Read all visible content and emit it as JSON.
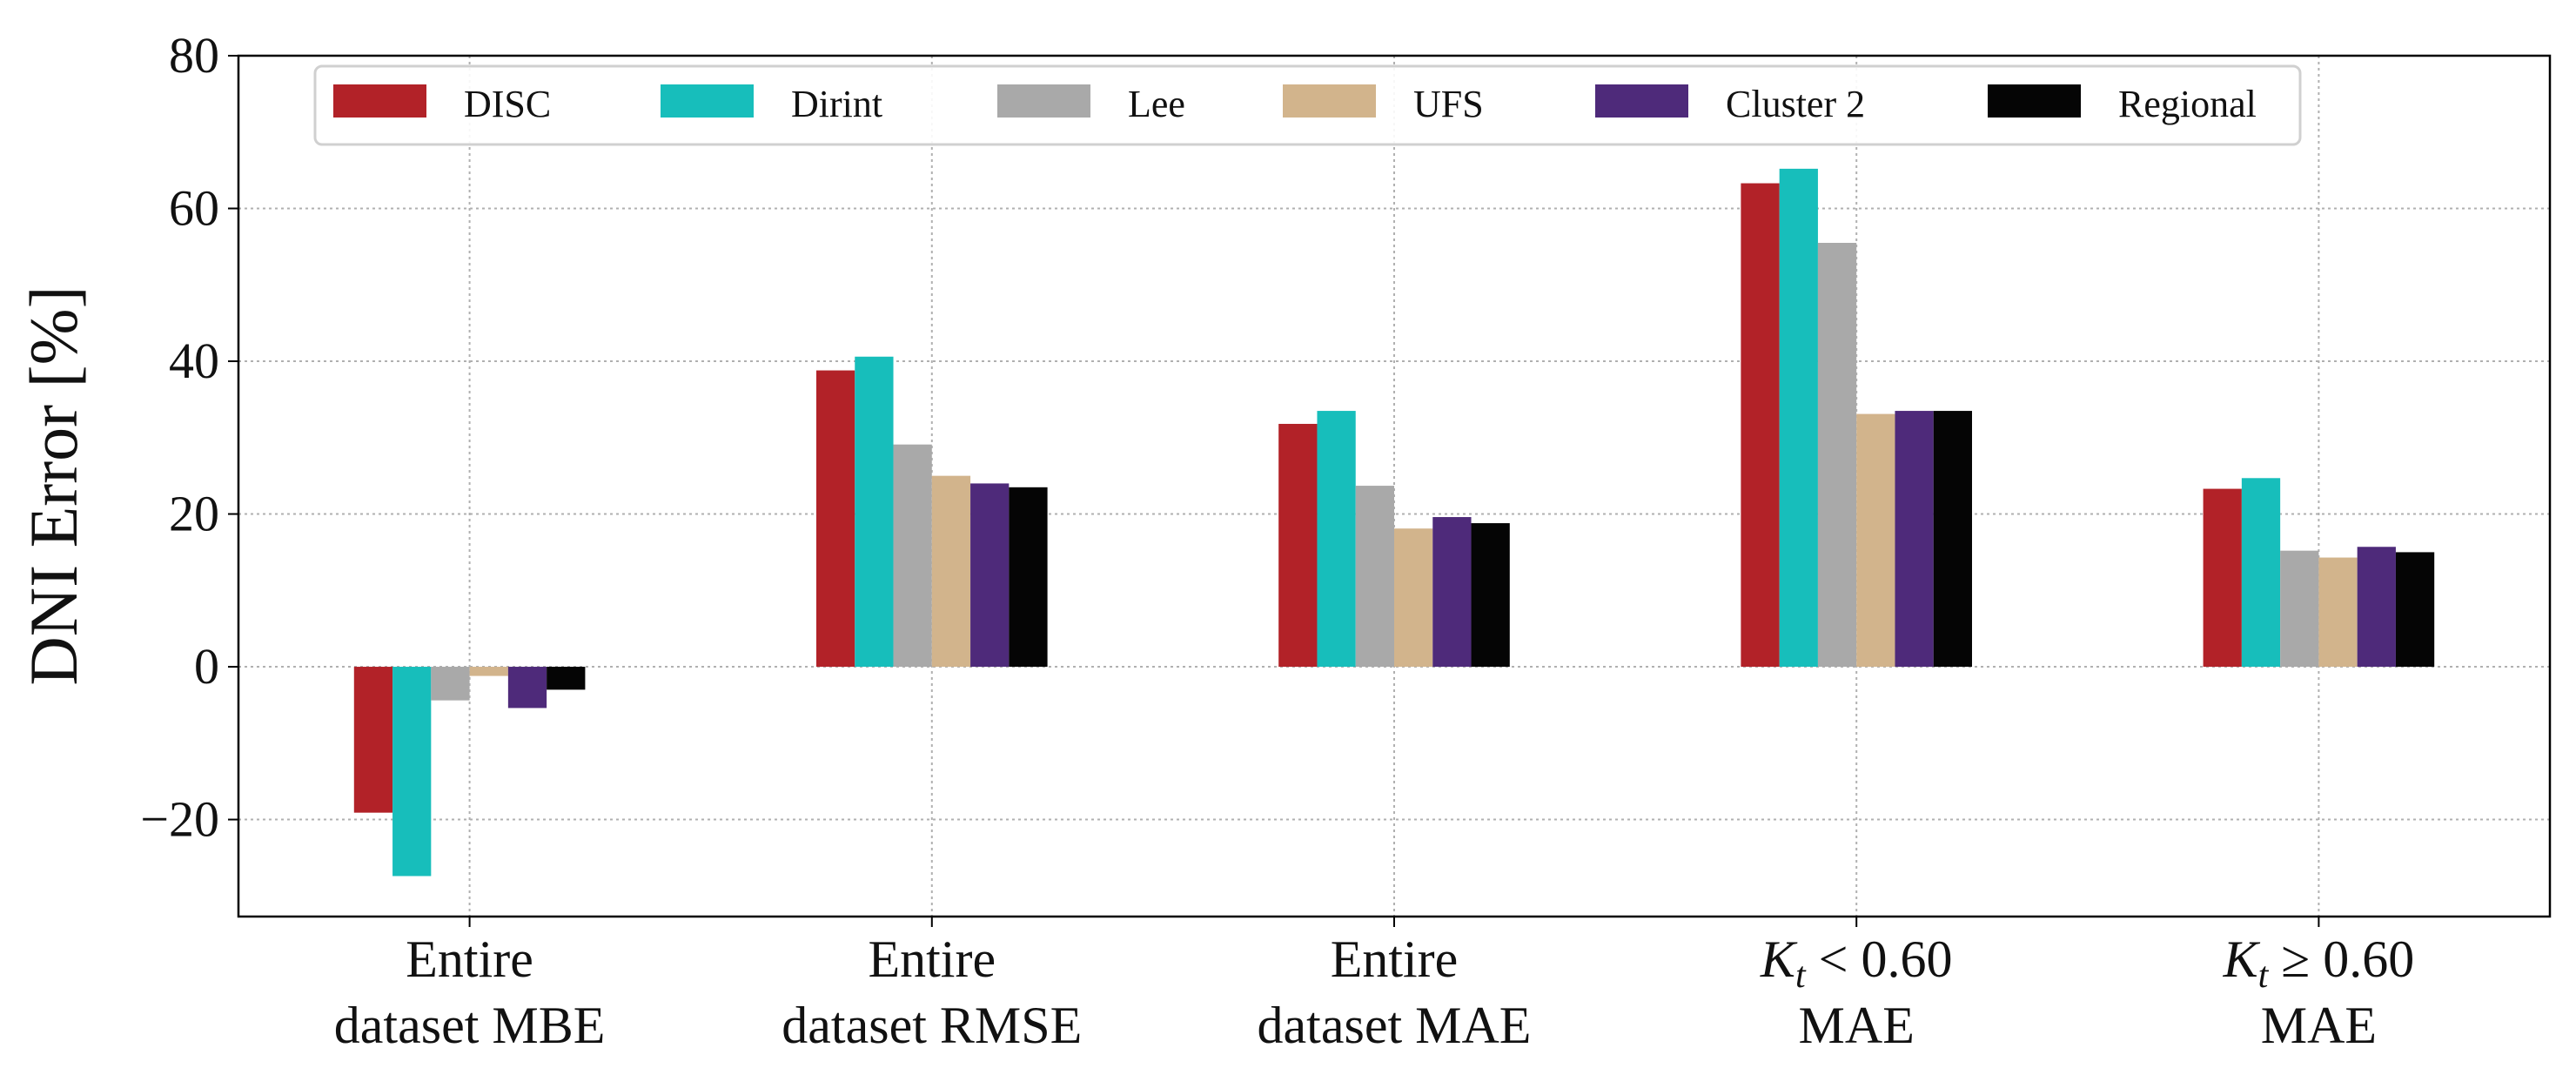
{
  "chart_data": {
    "type": "bar",
    "ylabel": "DNI Error [%]",
    "ylim": [
      -32.7,
      80
    ],
    "yticks": [
      -20,
      0,
      20,
      40,
      60,
      80
    ],
    "grid": true,
    "legend_placement": "top",
    "categories": [
      {
        "line1": "Entire",
        "line2": "dataset MBE"
      },
      {
        "line1": "Entire",
        "line2": "dataset RMSE"
      },
      {
        "line1": "Entire",
        "line2": "dataset MAE"
      },
      {
        "math": {
          "var": "K",
          "sub": "t",
          "rel": "<",
          "val": "0.60"
        },
        "line2": "MAE"
      },
      {
        "math": {
          "var": "K",
          "sub": "t",
          "rel": "≥",
          "val": "0.60"
        },
        "line2": "MAE"
      }
    ],
    "series": [
      {
        "name": "DISC",
        "color": "#b22228",
        "values": [
          -19.1,
          38.8,
          31.8,
          63.3,
          23.3
        ]
      },
      {
        "name": "Dirint",
        "color": "#17bebb",
        "values": [
          -27.4,
          40.6,
          33.5,
          65.2,
          24.7
        ]
      },
      {
        "name": "Lee",
        "color": "#a9a9a9",
        "values": [
          -4.4,
          29.1,
          23.7,
          55.5,
          15.2
        ]
      },
      {
        "name": "UFS",
        "color": "#d2b48c",
        "values": [
          -1.2,
          25.0,
          18.1,
          33.1,
          14.3
        ]
      },
      {
        "name": "Cluster 2",
        "color": "#4e2a7a",
        "values": [
          -5.4,
          24.0,
          19.6,
          33.5,
          15.7
        ]
      },
      {
        "name": "Regional",
        "color": "#050505",
        "values": [
          -3.0,
          23.5,
          18.8,
          33.5,
          15.0
        ]
      }
    ]
  }
}
